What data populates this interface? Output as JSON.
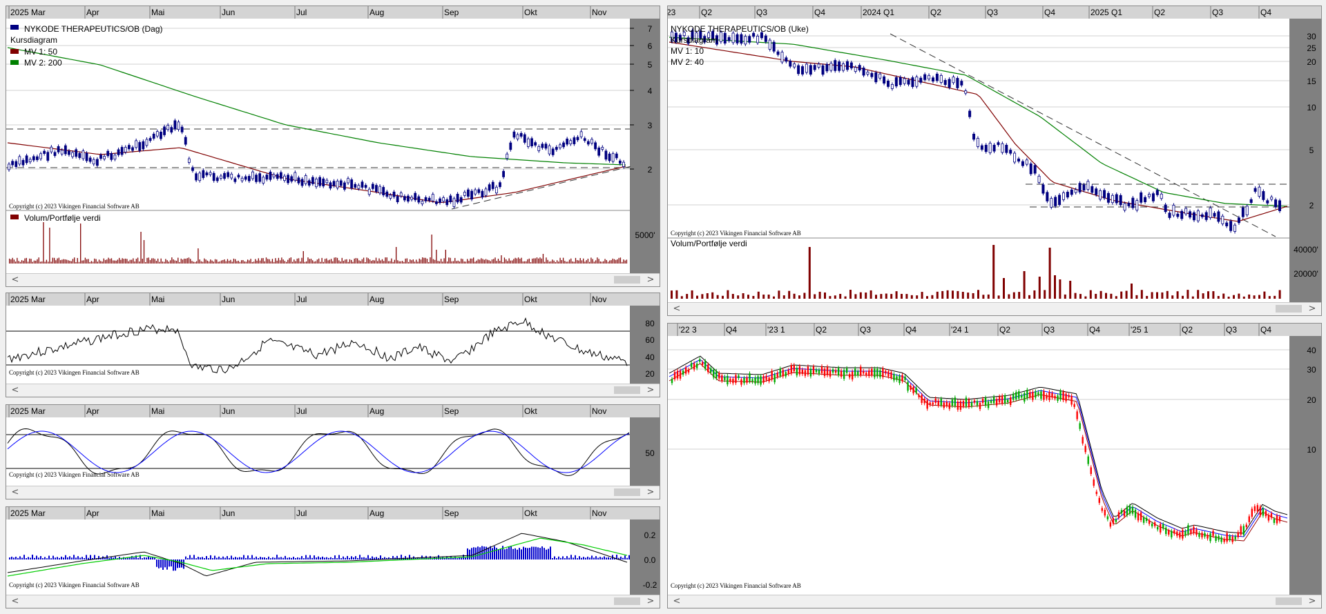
{
  "daily": {
    "months": [
      "2025 Mar",
      "Apr",
      "Mai",
      "Jun",
      "Jul",
      "Aug",
      "Sep",
      "Okt",
      "Nov"
    ],
    "title": "NYKODE THERAPEUTICS/OB (Dag)",
    "legend": [
      "Kursdiagram",
      "MV 1: 50",
      "MV 2: 200"
    ],
    "price_axis": [
      "7",
      "6",
      "5",
      "4",
      "3",
      "2"
    ],
    "copyright": "Copyright (c) 2023 Vikingen Financial Software AB",
    "volume_label": "Volum/Portfølje verdi",
    "volume_axis": "5000'",
    "rsi_axis": [
      "80",
      "60",
      "40",
      "20"
    ],
    "stoch_axis": [
      "50"
    ],
    "macd_axis": [
      "0.2",
      "0.0",
      "-0.2"
    ]
  },
  "weekly": {
    "periods": [
      "23",
      "Q2",
      "Q3",
      "Q4",
      "2024 Q1",
      "Q2",
      "Q3",
      "Q4",
      "2025 Q1",
      "Q2",
      "Q3",
      "Q4"
    ],
    "title": "NYKODE THERAPEUTICS/OB (Uke)",
    "legend": [
      "Kursdiagram",
      "MV 1: 10",
      "MV 2: 40"
    ],
    "price_axis": [
      "30",
      "25",
      "20",
      "15",
      "10",
      "5",
      "2"
    ],
    "copyright": "Copyright (c) 2023 Vikingen Financial Software AB",
    "volume_label": "Volum/Portfølje verdi",
    "volume_axis": [
      "40000'",
      "20000'"
    ]
  },
  "long": {
    "periods": [
      "'22 3",
      "Q4",
      "'23 1",
      "Q2",
      "Q3",
      "Q4",
      "'24 1",
      "Q2",
      "Q3",
      "Q4",
      "'25 1",
      "Q2",
      "Q3",
      "Q4"
    ],
    "price_axis": [
      "40",
      "30",
      "20",
      "10"
    ],
    "copyright": "Copyright (c) 2023 Vikingen Financial Software AB"
  },
  "colors": {
    "candle": "#000080",
    "mv_short": "#800000",
    "mv_long": "#008000",
    "volume": "#800000",
    "axis_bg": "#808080",
    "header_bg": "#d4d4d4",
    "up_candle": "#00aa00",
    "down_candle": "#ff0000"
  }
}
